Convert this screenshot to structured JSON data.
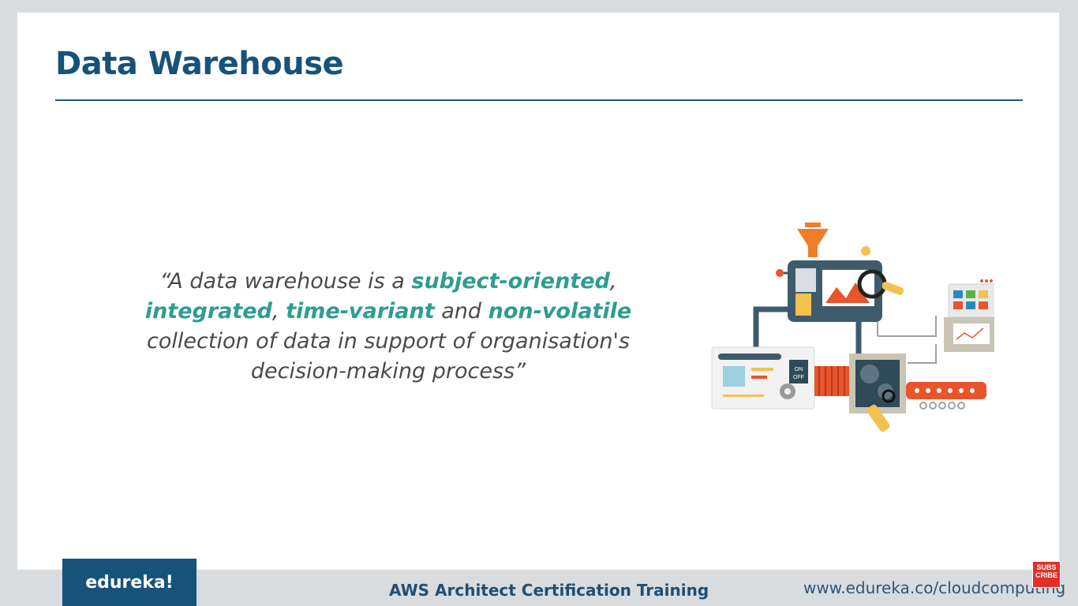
{
  "slide": {
    "title": "Data Warehouse",
    "quote": {
      "open": "“A data warehouse is a ",
      "term1": "subject-oriented",
      "sep1": ", ",
      "term2": "integrated",
      "sep2": ", ",
      "term3": "time-variant",
      "mid": " and ",
      "term4": "non-volatile",
      "rest": " collection of data in support of organisation's decision-making process”"
    },
    "illustration": {
      "switch_on": "ON",
      "switch_off": "OFF"
    }
  },
  "footer": {
    "logo": "edureka!",
    "course": "AWS Architect Certification Training",
    "url": "www.edureka.co/cloudcomputing",
    "subscribe": "SUBS CRIBE"
  },
  "colors": {
    "title": "#16527a",
    "highlight": "#2d9d90",
    "logo_bg": "#16527a"
  }
}
